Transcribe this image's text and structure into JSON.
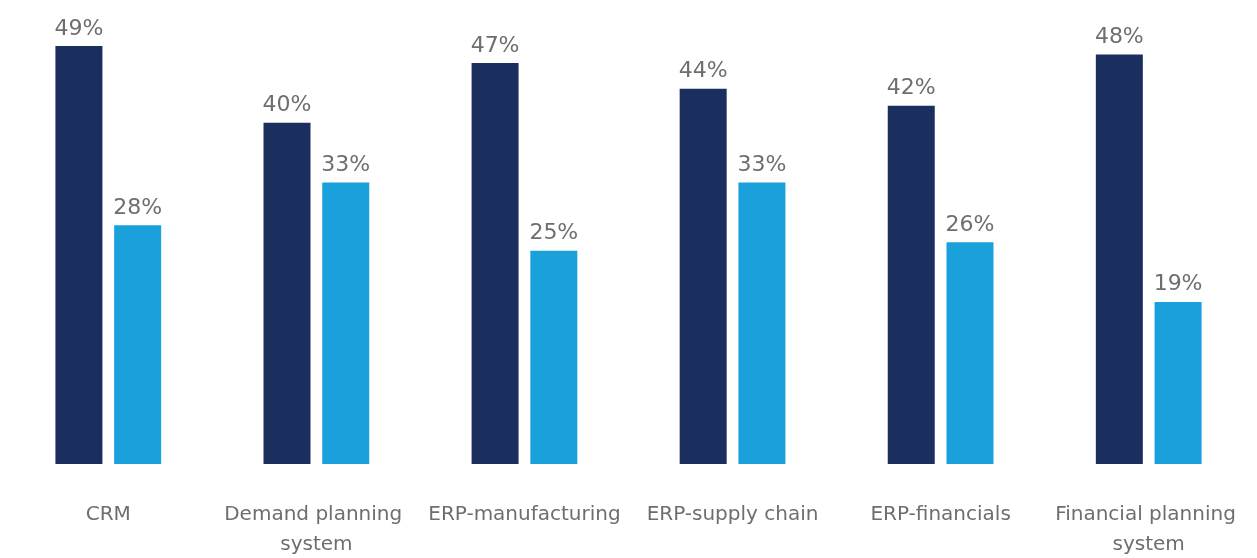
{
  "chart_data": {
    "type": "bar",
    "categories": [
      "CRM",
      "Demand planning system",
      "ERP-manufacturing",
      "ERP-supply chain",
      "ERP-financials",
      "Financial planning system"
    ],
    "series": [
      {
        "color": "#1b2f5e",
        "values": [
          49,
          40,
          47,
          44,
          42,
          48
        ],
        "value_labels": [
          "49%",
          "40%",
          "47%",
          "44%",
          "42%",
          "48%"
        ]
      },
      {
        "color": "#1aa0db",
        "values": [
          28,
          33,
          25,
          33,
          26,
          19
        ],
        "value_labels": [
          "28%",
          "33%",
          "25%",
          "33%",
          "26%",
          "19%"
        ]
      }
    ]
  }
}
